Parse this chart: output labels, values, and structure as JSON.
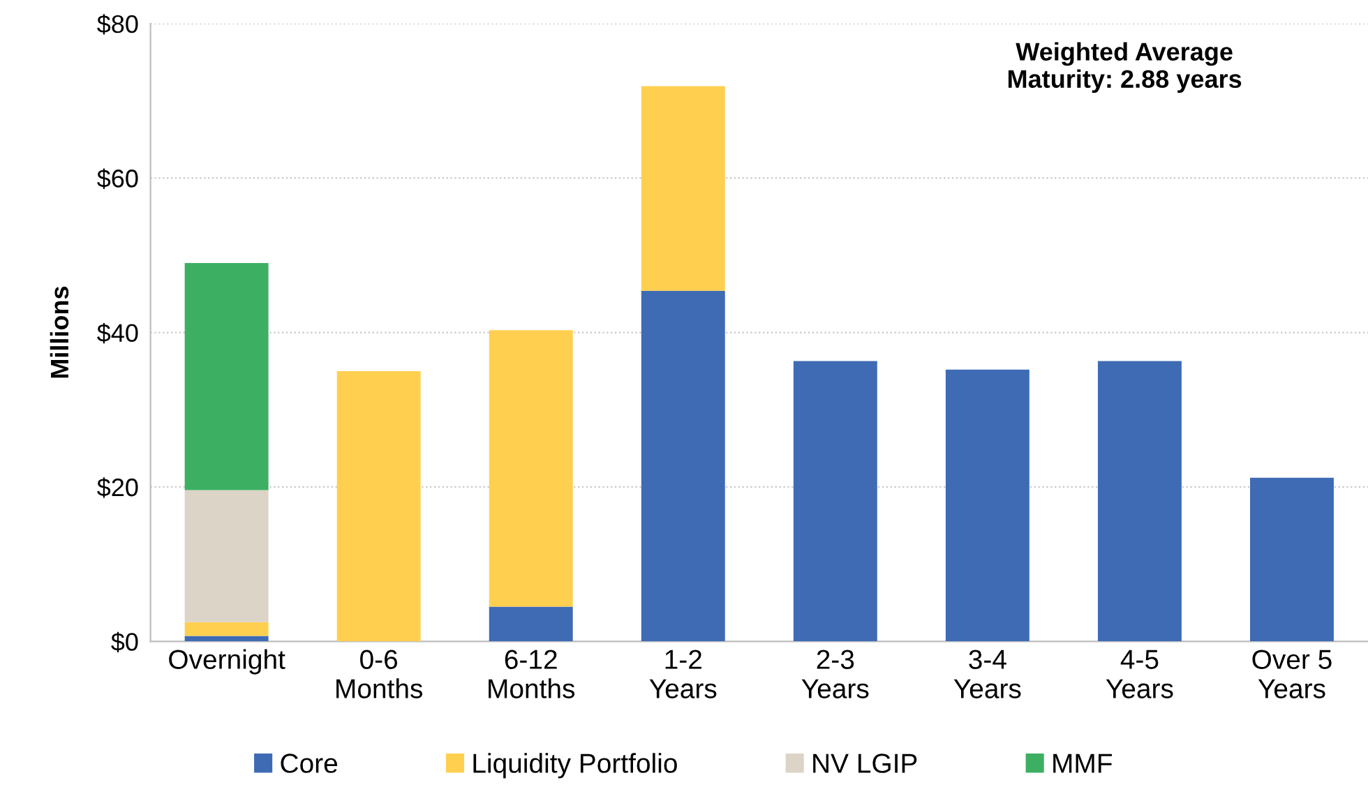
{
  "chart_data": {
    "type": "bar",
    "stacked": true,
    "ylabel": "Millions",
    "categories": [
      "Overnight",
      "0-6\nMonths",
      "6-12\nMonths",
      "1-2\nYears",
      "2-3\nYears",
      "3-4\nYears",
      "4-5\nYears",
      "Over 5\nYears"
    ],
    "series": [
      {
        "name": "Core",
        "color": "#3e6bb4",
        "values": [
          0.7,
          null,
          4.5,
          45.4,
          36.3,
          35.2,
          36.3,
          21.2
        ]
      },
      {
        "name": "Liquidity Portfolio",
        "color": "#ffcf4f",
        "values": [
          1.8,
          35.0,
          35.8,
          26.5,
          null,
          null,
          null,
          null
        ]
      },
      {
        "name": "NV LGIP",
        "color": "#dcd4c6",
        "values": [
          17.1,
          null,
          null,
          null,
          null,
          null,
          null,
          null
        ]
      },
      {
        "name": "MMF",
        "color": "#3daf63",
        "values": [
          29.4,
          null,
          null,
          null,
          null,
          null,
          null,
          null
        ]
      }
    ],
    "ylim": [
      0,
      80
    ],
    "yticks": [
      {
        "value": 0,
        "label": "$0"
      },
      {
        "value": 20,
        "label": "$20"
      },
      {
        "value": 40,
        "label": "$40"
      },
      {
        "value": 60,
        "label": "$60"
      },
      {
        "value": 80,
        "label": "$80"
      }
    ],
    "grid": "y",
    "legend": "bottom",
    "annotations": [
      "Weighted Average\nMaturity: 2.88 years"
    ]
  }
}
